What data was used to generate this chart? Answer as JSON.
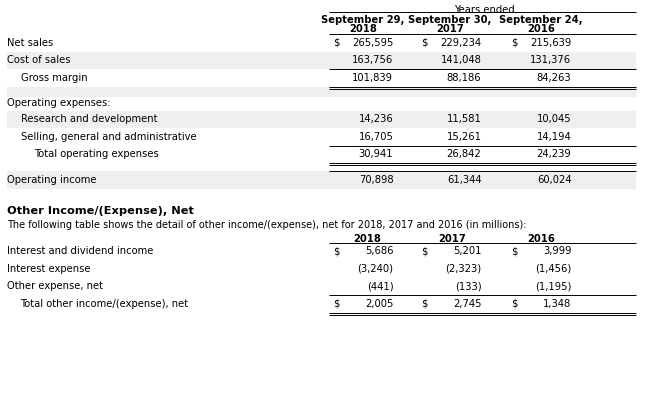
{
  "title_top": "Years ended",
  "col_headers": [
    "September 29,\n2018",
    "September 30,\n2017",
    "September 24,\n2016"
  ],
  "section1_rows": [
    {
      "label": "Net sales",
      "indent": 0,
      "shaded": false,
      "top_border": true,
      "bottom_border": false,
      "dollar_signs": [
        true,
        true,
        true
      ],
      "vals": [
        "265,595",
        "229,234",
        "215,639"
      ]
    },
    {
      "label": "Cost of sales",
      "indent": 0,
      "shaded": true,
      "top_border": false,
      "bottom_border": false,
      "dollar_signs": [
        false,
        false,
        false
      ],
      "vals": [
        "163,756",
        "141,048",
        "131,376"
      ]
    },
    {
      "label": "Gross margin",
      "indent": 1,
      "shaded": false,
      "top_border": true,
      "bottom_border": true,
      "dollar_signs": [
        false,
        false,
        false
      ],
      "vals": [
        "101,839",
        "88,186",
        "84,263"
      ]
    }
  ],
  "section2_header": "Operating expenses:",
  "section2_rows": [
    {
      "label": "Research and development",
      "indent": 1,
      "shaded": true,
      "top_border": false,
      "bottom_border": false,
      "dollar_signs": [
        false,
        false,
        false
      ],
      "vals": [
        "14,236",
        "11,581",
        "10,045"
      ]
    },
    {
      "label": "Selling, general and administrative",
      "indent": 1,
      "shaded": false,
      "top_border": false,
      "bottom_border": false,
      "dollar_signs": [
        false,
        false,
        false
      ],
      "vals": [
        "16,705",
        "15,261",
        "14,194"
      ]
    },
    {
      "label": "Total operating expenses",
      "indent": 2,
      "shaded": false,
      "top_border": true,
      "bottom_border": true,
      "dollar_signs": [
        false,
        false,
        false
      ],
      "vals": [
        "30,941",
        "26,842",
        "24,239"
      ]
    }
  ],
  "section3_rows": [
    {
      "label": "Operating income",
      "indent": 0,
      "shaded": true,
      "top_border": true,
      "bottom_border": false,
      "dollar_signs": [
        false,
        false,
        false
      ],
      "vals": [
        "70,898",
        "61,344",
        "60,024"
      ]
    }
  ],
  "section4_title": "Other Income/(Expense), Net",
  "section4_subtitle": "The following table shows the detail of other income/(expense), net for 2018, 2017 and 2016 (in millions):",
  "section4_col_headers": [
    "2018",
    "2017",
    "2016"
  ],
  "section4_rows": [
    {
      "label": "Interest and dividend income",
      "indent": 0,
      "shaded": false,
      "top_border": true,
      "bottom_border": false,
      "dollar_signs": [
        true,
        true,
        true
      ],
      "vals": [
        "5,686",
        "5,201",
        "3,999"
      ]
    },
    {
      "label": "Interest expense",
      "indent": 0,
      "shaded": false,
      "top_border": false,
      "bottom_border": false,
      "dollar_signs": [
        false,
        false,
        false
      ],
      "vals": [
        "(3,240)",
        "(2,323)",
        "(1,456)"
      ]
    },
    {
      "label": "Other expense, net",
      "indent": 0,
      "shaded": false,
      "top_border": false,
      "bottom_border": false,
      "dollar_signs": [
        false,
        false,
        false
      ],
      "vals": [
        "(441)",
        "(133)",
        "(1,195)"
      ]
    },
    {
      "label": "Total other income/(expense), net",
      "indent": 1,
      "shaded": false,
      "top_border": true,
      "bottom_border": true,
      "dollar_signs": [
        true,
        true,
        true
      ],
      "vals": [
        "2,005",
        "2,745",
        "1,348"
      ]
    }
  ],
  "bg_color": "#ffffff",
  "shaded_color": "#efefef",
  "text_color": "#000000",
  "font_size": 7.2,
  "bold_font_size": 7.4
}
